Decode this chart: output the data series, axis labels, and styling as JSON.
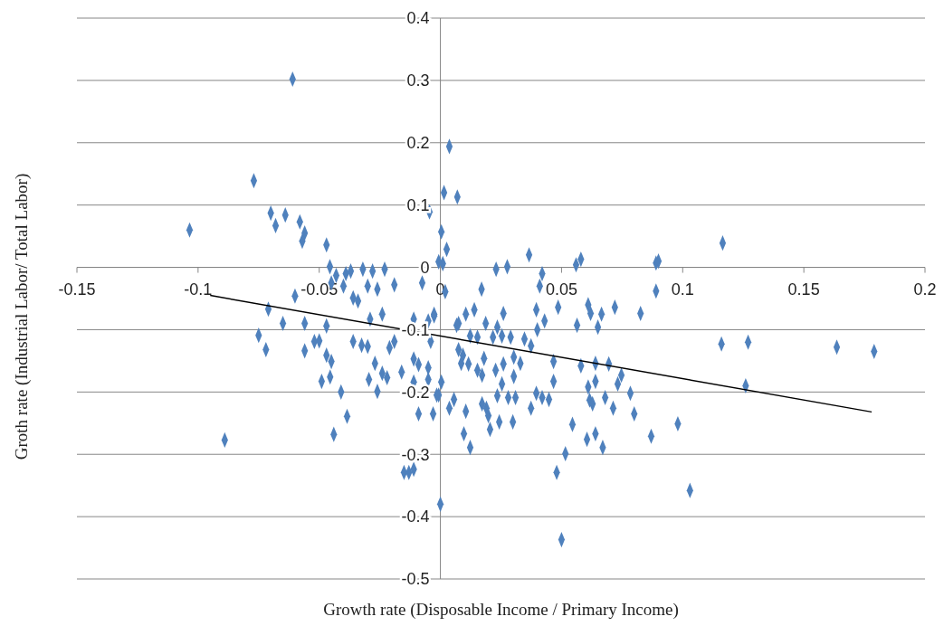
{
  "chart_data": {
    "type": "scatter",
    "xlabel": "Growth rate (Disposable  Income / Primary Income)",
    "ylabel": "Groth rate (Industrial Labor/ Total Labor)",
    "xlim": [
      -0.15,
      0.2
    ],
    "xticks": [
      -0.15,
      -0.1,
      -0.05,
      0,
      0.05,
      0.1,
      0.15,
      0.2
    ],
    "ylim": [
      -0.5,
      0.4
    ],
    "yticks": [
      -0.5,
      -0.4,
      -0.3,
      -0.2,
      -0.1,
      0,
      0.1,
      0.2,
      0.3,
      0.4
    ],
    "grid": "y",
    "series": [
      {
        "color": "#4f81bd",
        "marker": "diamond",
        "x": [
          -0.1035,
          -0.061,
          -0.077,
          -0.07,
          -0.068,
          -0.064,
          -0.058,
          -0.056,
          -0.057,
          -0.047,
          0.0037,
          0.0015,
          0.007,
          -0.0045,
          0.0004,
          0.0026,
          -0.0007,
          0.001,
          0.023,
          0.0276,
          0.0366,
          0.042,
          0.041,
          0.017,
          0.002,
          0.056,
          0.058,
          0.089,
          0.09,
          0.089,
          0.1165,
          0.127,
          0.116,
          0.1636,
          0.179,
          0.126,
          0.098,
          0.103,
          0.087,
          0.05,
          0.048,
          0.0516,
          0.0545,
          0.0605,
          0.064,
          0.067,
          0,
          0.072,
          0.0826,
          0.061,
          0.062,
          0.0665,
          0.0564,
          0.065,
          0.0486,
          0.0396,
          0.043,
          0.04,
          0.026,
          0.014,
          0.0105,
          0.0075,
          0.0187,
          0.0235,
          -0.0026,
          0.0067,
          0.0123,
          0.0153,
          0.0217,
          0.0254,
          0.029,
          0.0347,
          0.0374,
          0.0075,
          0.0093,
          0.0086,
          0.0116,
          0.018,
          0.0153,
          0.0172,
          0.0228,
          0.026,
          0.0303,
          0.033,
          0.0303,
          0.0254,
          0.0467,
          0.0467,
          0.058,
          0.064,
          0.0695,
          0.0747,
          0.0732,
          0.064,
          0.061,
          0.068,
          0.0616,
          0.0628,
          0.0713,
          0.0784,
          0.08,
          0.0004,
          -0.0007,
          0.0056,
          0.0105,
          0.0037,
          0.0235,
          0.028,
          0.031,
          0.0396,
          0.042,
          0.0448,
          0.0172,
          0.019,
          0.0374,
          0.0198,
          0.0243,
          0.0205,
          0.0299,
          0.0097,
          0.0123,
          -0.089,
          -0.044,
          -0.0385,
          -0.041,
          -0.049,
          -0.0455,
          -0.045,
          -0.047,
          -0.056,
          -0.075,
          -0.072,
          -0.071,
          -0.065,
          -0.056,
          -0.047,
          -0.052,
          -0.05,
          -0.06,
          -0.0456,
          -0.045,
          -0.043,
          -0.039,
          -0.037,
          -0.032,
          -0.028,
          -0.023,
          -0.036,
          -0.034,
          -0.04,
          -0.03,
          -0.026,
          -0.019,
          -0.0075,
          -0.024,
          -0.029,
          -0.036,
          -0.0325,
          -0.03,
          -0.021,
          -0.019,
          -0.027,
          -0.024,
          -0.022,
          -0.016,
          -0.0295,
          -0.026,
          -0.011,
          -0.009,
          -0.005,
          -0.005,
          -0.011,
          -0.009,
          -0.003,
          -0.011,
          -0.005,
          -0.0026,
          -0.004,
          -0.0015,
          -0.015,
          -0.011,
          -0.013
        ],
        "values": [
          0.06,
          0.302,
          0.139,
          0.087,
          0.067,
          0.084,
          0.073,
          0.055,
          0.042,
          0.036,
          0.194,
          0.12,
          0.113,
          0.089,
          0.057,
          0.029,
          0.009,
          0.006,
          -0.003,
          0.001,
          0.02,
          -0.01,
          -0.03,
          -0.035,
          -0.039,
          0.004,
          0.013,
          0.007,
          0.01,
          -0.038,
          0.039,
          -0.12,
          -0.123,
          -0.128,
          -0.135,
          -0.19,
          -0.251,
          -0.358,
          -0.271,
          -0.437,
          -0.329,
          -0.299,
          -0.252,
          -0.276,
          -0.267,
          -0.289,
          -0.38,
          -0.064,
          -0.074,
          -0.06,
          -0.074,
          -0.075,
          -0.093,
          -0.096,
          -0.064,
          -0.068,
          -0.086,
          -0.1,
          -0.074,
          -0.068,
          -0.075,
          -0.09,
          -0.09,
          -0.096,
          -0.075,
          -0.093,
          -0.11,
          -0.112,
          -0.112,
          -0.11,
          -0.112,
          -0.115,
          -0.126,
          -0.132,
          -0.141,
          -0.154,
          -0.155,
          -0.146,
          -0.165,
          -0.173,
          -0.165,
          -0.155,
          -0.144,
          -0.154,
          -0.175,
          -0.187,
          -0.151,
          -0.183,
          -0.158,
          -0.154,
          -0.155,
          -0.173,
          -0.187,
          -0.183,
          -0.192,
          -0.209,
          -0.213,
          -0.219,
          -0.226,
          -0.202,
          -0.235,
          -0.184,
          -0.205,
          -0.212,
          -0.231,
          -0.226,
          -0.206,
          -0.209,
          -0.209,
          -0.202,
          -0.209,
          -0.212,
          -0.219,
          -0.226,
          -0.226,
          -0.238,
          -0.248,
          -0.26,
          -0.248,
          -0.267,
          -0.289,
          -0.277,
          -0.268,
          -0.239,
          -0.2,
          -0.183,
          -0.176,
          -0.151,
          -0.141,
          -0.134,
          -0.109,
          -0.132,
          -0.067,
          -0.09,
          -0.09,
          -0.094,
          -0.119,
          -0.118,
          -0.046,
          0.001,
          -0.025,
          -0.013,
          -0.01,
          -0.006,
          -0.003,
          -0.006,
          -0.003,
          -0.049,
          -0.054,
          -0.03,
          -0.03,
          -0.035,
          -0.028,
          -0.025,
          -0.075,
          -0.083,
          -0.119,
          -0.125,
          -0.127,
          -0.129,
          -0.119,
          -0.154,
          -0.17,
          -0.177,
          -0.168,
          -0.18,
          -0.199,
          -0.147,
          -0.156,
          -0.161,
          -0.18,
          -0.184,
          -0.235,
          -0.235,
          -0.083,
          -0.086,
          -0.078,
          -0.119,
          -0.205,
          -0.329,
          -0.324,
          -0.329
        ]
      },
      {
        "type": "line",
        "color": "#000000",
        "marker": "none",
        "x": [
          -0.095,
          0.178
        ],
        "values": [
          -0.045,
          -0.232
        ]
      }
    ]
  }
}
